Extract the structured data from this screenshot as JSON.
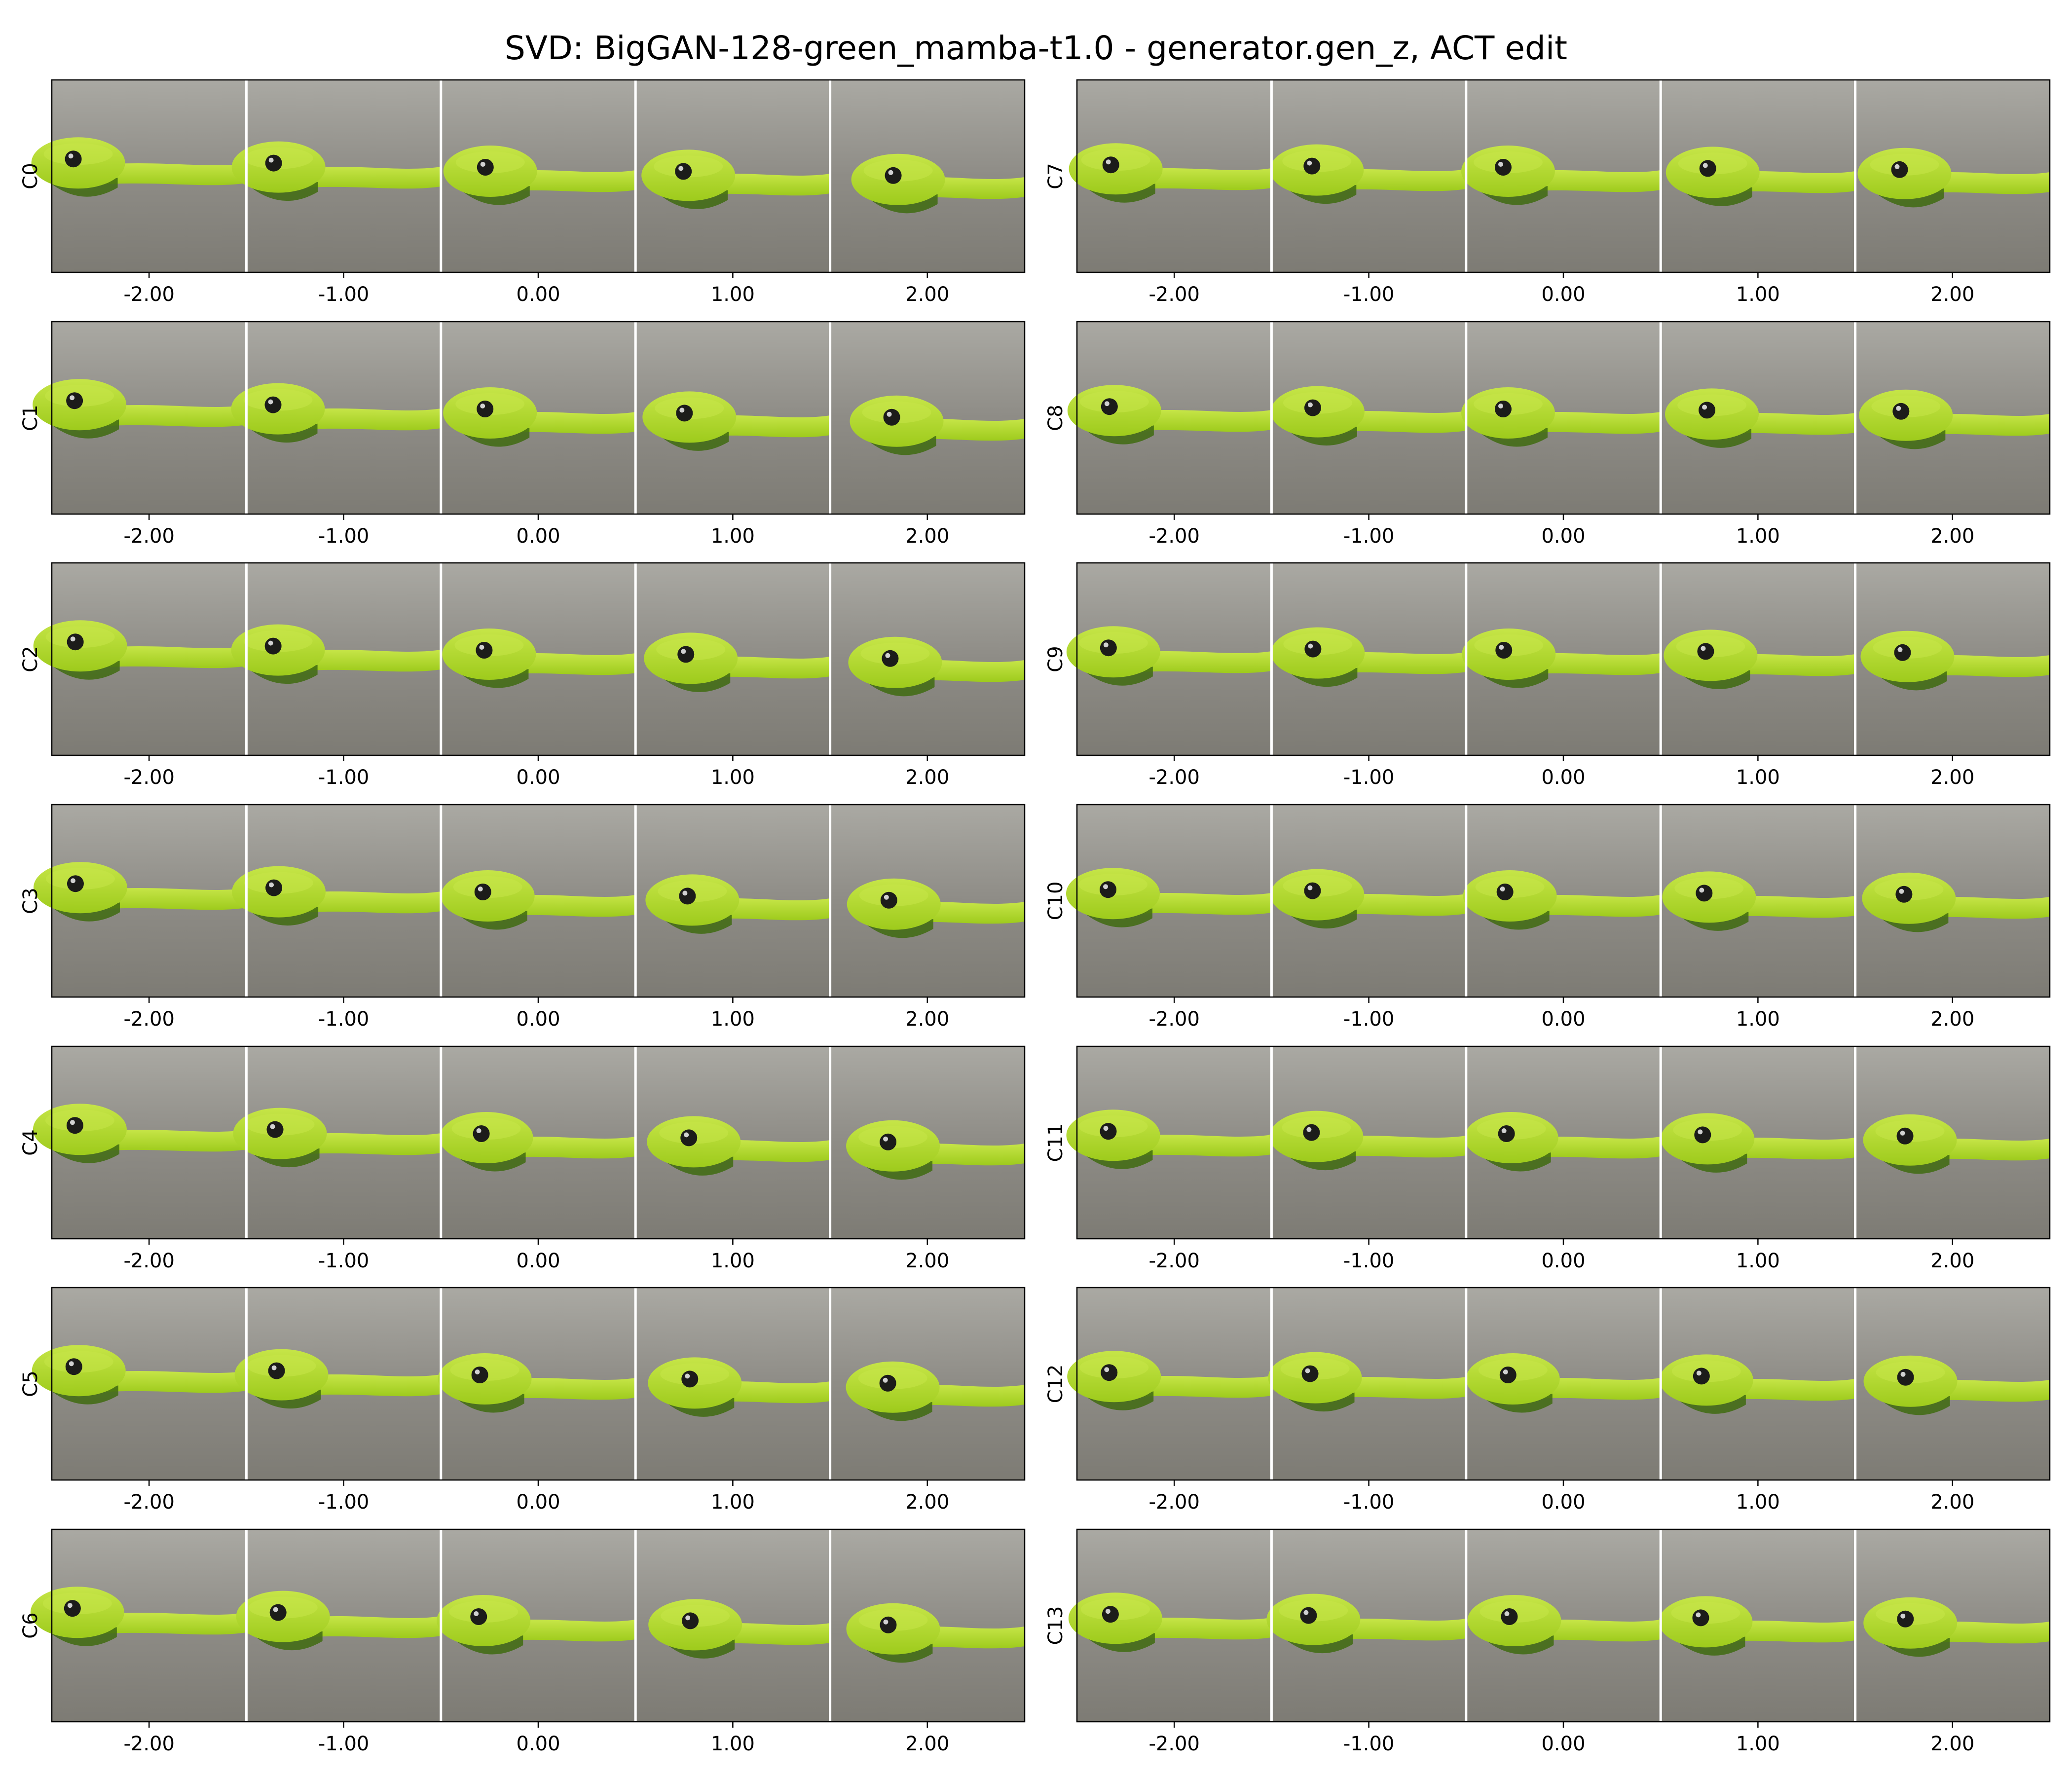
{
  "title": "SVD: BigGAN-128-green_mamba-t1.0 - generator.gen_z, ACT edit",
  "x_ticks": [
    "-2.00",
    "-1.00",
    "0.00",
    "1.00",
    "2.00"
  ],
  "columns": [
    {
      "rows": [
        "C0",
        "C1",
        "C2",
        "C3",
        "C4",
        "C5",
        "C6"
      ]
    },
    {
      "rows": [
        "C7",
        "C8",
        "C9",
        "C10",
        "C11",
        "C12",
        "C13"
      ]
    }
  ],
  "colors": {
    "background": "#8e8c86",
    "backdrop": "#aaa9a3",
    "snake": "#9ecb1c",
    "snake_light": "#c6e548",
    "snake_dark": "#3f6b10",
    "eye": "#1c1c1a",
    "separator": "#ffffff",
    "frame": "#000000"
  }
}
